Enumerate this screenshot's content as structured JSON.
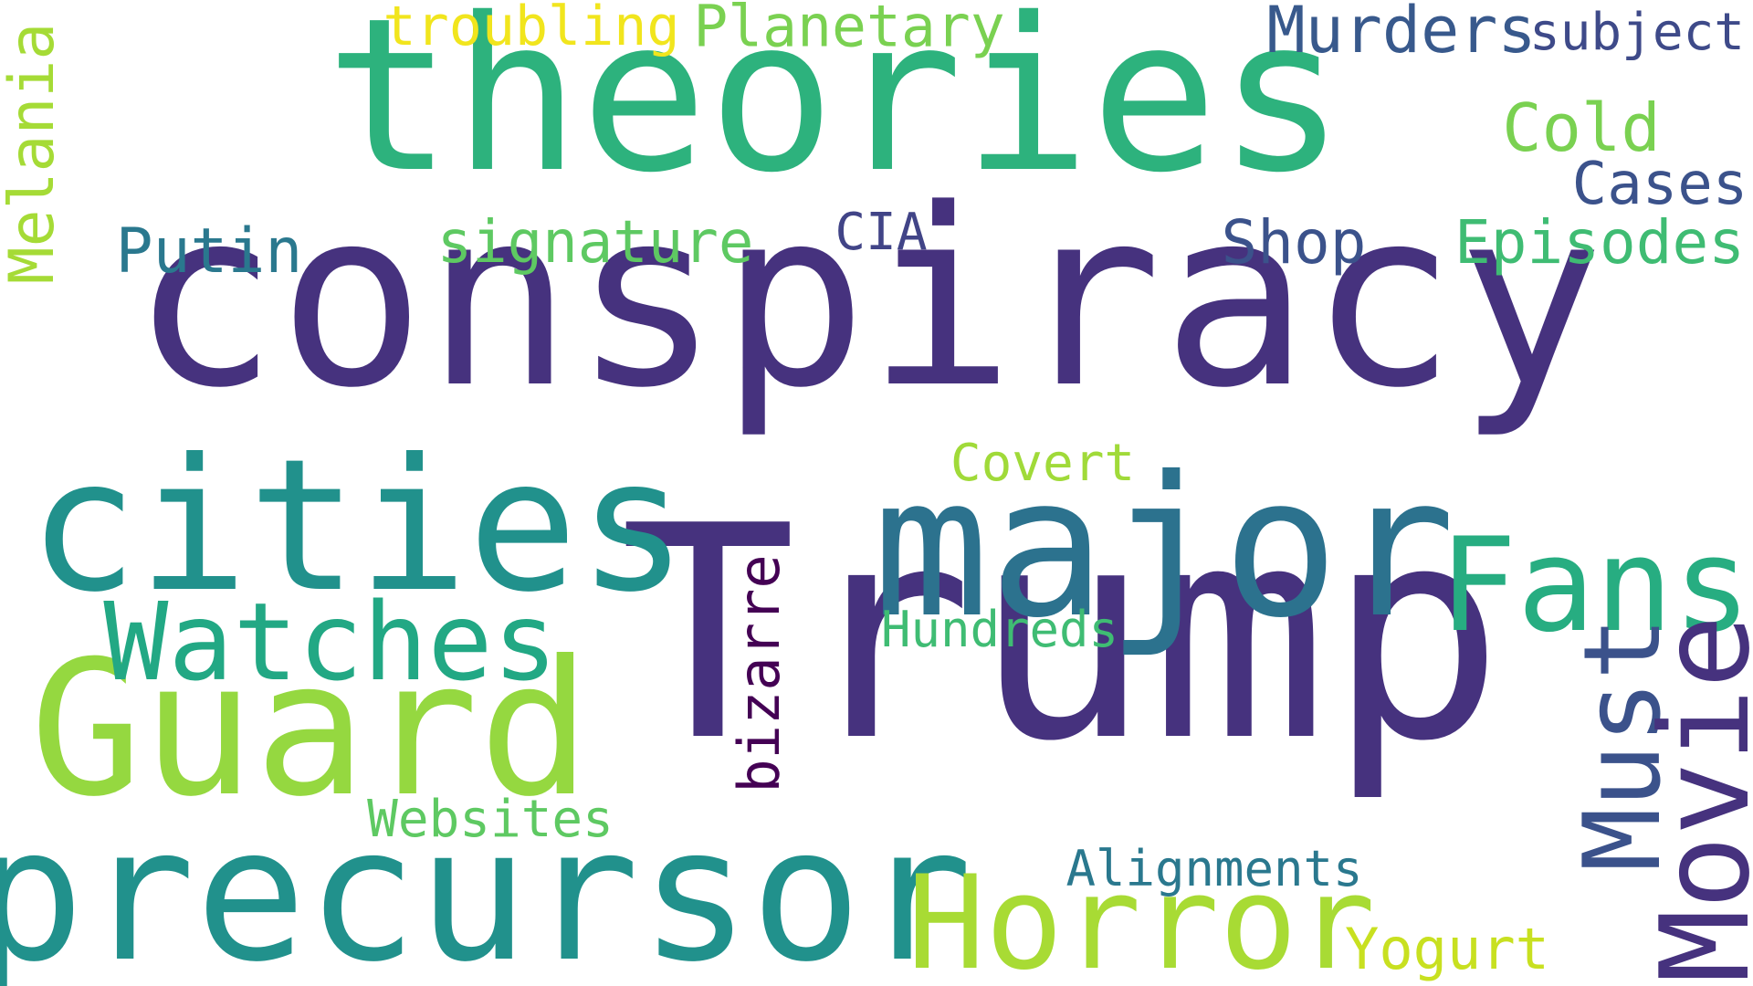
{
  "words": {
    "theories": {
      "text": "theories",
      "color": "#2db27d"
    },
    "conspiracy": {
      "text": "conspiracy",
      "color": "#46327e"
    },
    "trump": {
      "text": "Trump",
      "color": "#46327e"
    },
    "cities": {
      "text": "cities",
      "color": "#21918c"
    },
    "major": {
      "text": "major",
      "color": "#2c728e"
    },
    "guard": {
      "text": "Guard",
      "color": "#95d840"
    },
    "precursor": {
      "text": "precursor",
      "color": "#21918c"
    },
    "horror": {
      "text": "Horror",
      "color": "#a8db34"
    },
    "watches": {
      "text": "Watches",
      "color": "#22a884"
    },
    "fans": {
      "text": "Fans",
      "color": "#27ad81"
    },
    "must": {
      "text": "Must",
      "color": "#3b528b"
    },
    "movie": {
      "text": "Movie",
      "color": "#46327e"
    },
    "melania": {
      "text": "Melania",
      "color": "#a5db36"
    },
    "troubling": {
      "text": "troubling",
      "color": "#f1e51d"
    },
    "planetary": {
      "text": "Planetary",
      "color": "#7ad151"
    },
    "murders": {
      "text": "Murders",
      "color": "#38598c"
    },
    "subject": {
      "text": "subject",
      "color": "#3e4a89"
    },
    "cold": {
      "text": "Cold",
      "color": "#7ad151"
    },
    "cases": {
      "text": "Cases",
      "color": "#3b528b"
    },
    "episodes": {
      "text": "Episodes",
      "color": "#3fbc73"
    },
    "shop": {
      "text": "Shop",
      "color": "#3b528b"
    },
    "cia": {
      "text": "CIA",
      "color": "#414487"
    },
    "signature": {
      "text": "signature",
      "color": "#5ec962"
    },
    "putin": {
      "text": "Putin",
      "color": "#2a788e"
    },
    "covert": {
      "text": "Covert",
      "color": "#a0da39"
    },
    "bizarre": {
      "text": "bizarre",
      "color": "#440154"
    },
    "hundreds": {
      "text": "Hundreds",
      "color": "#3fbc73"
    },
    "websites": {
      "text": "Websites",
      "color": "#5ec962"
    },
    "alignments": {
      "text": "Alignments",
      "color": "#2a788e"
    },
    "yogurt": {
      "text": "Yogurt",
      "color": "#c8e020"
    }
  }
}
